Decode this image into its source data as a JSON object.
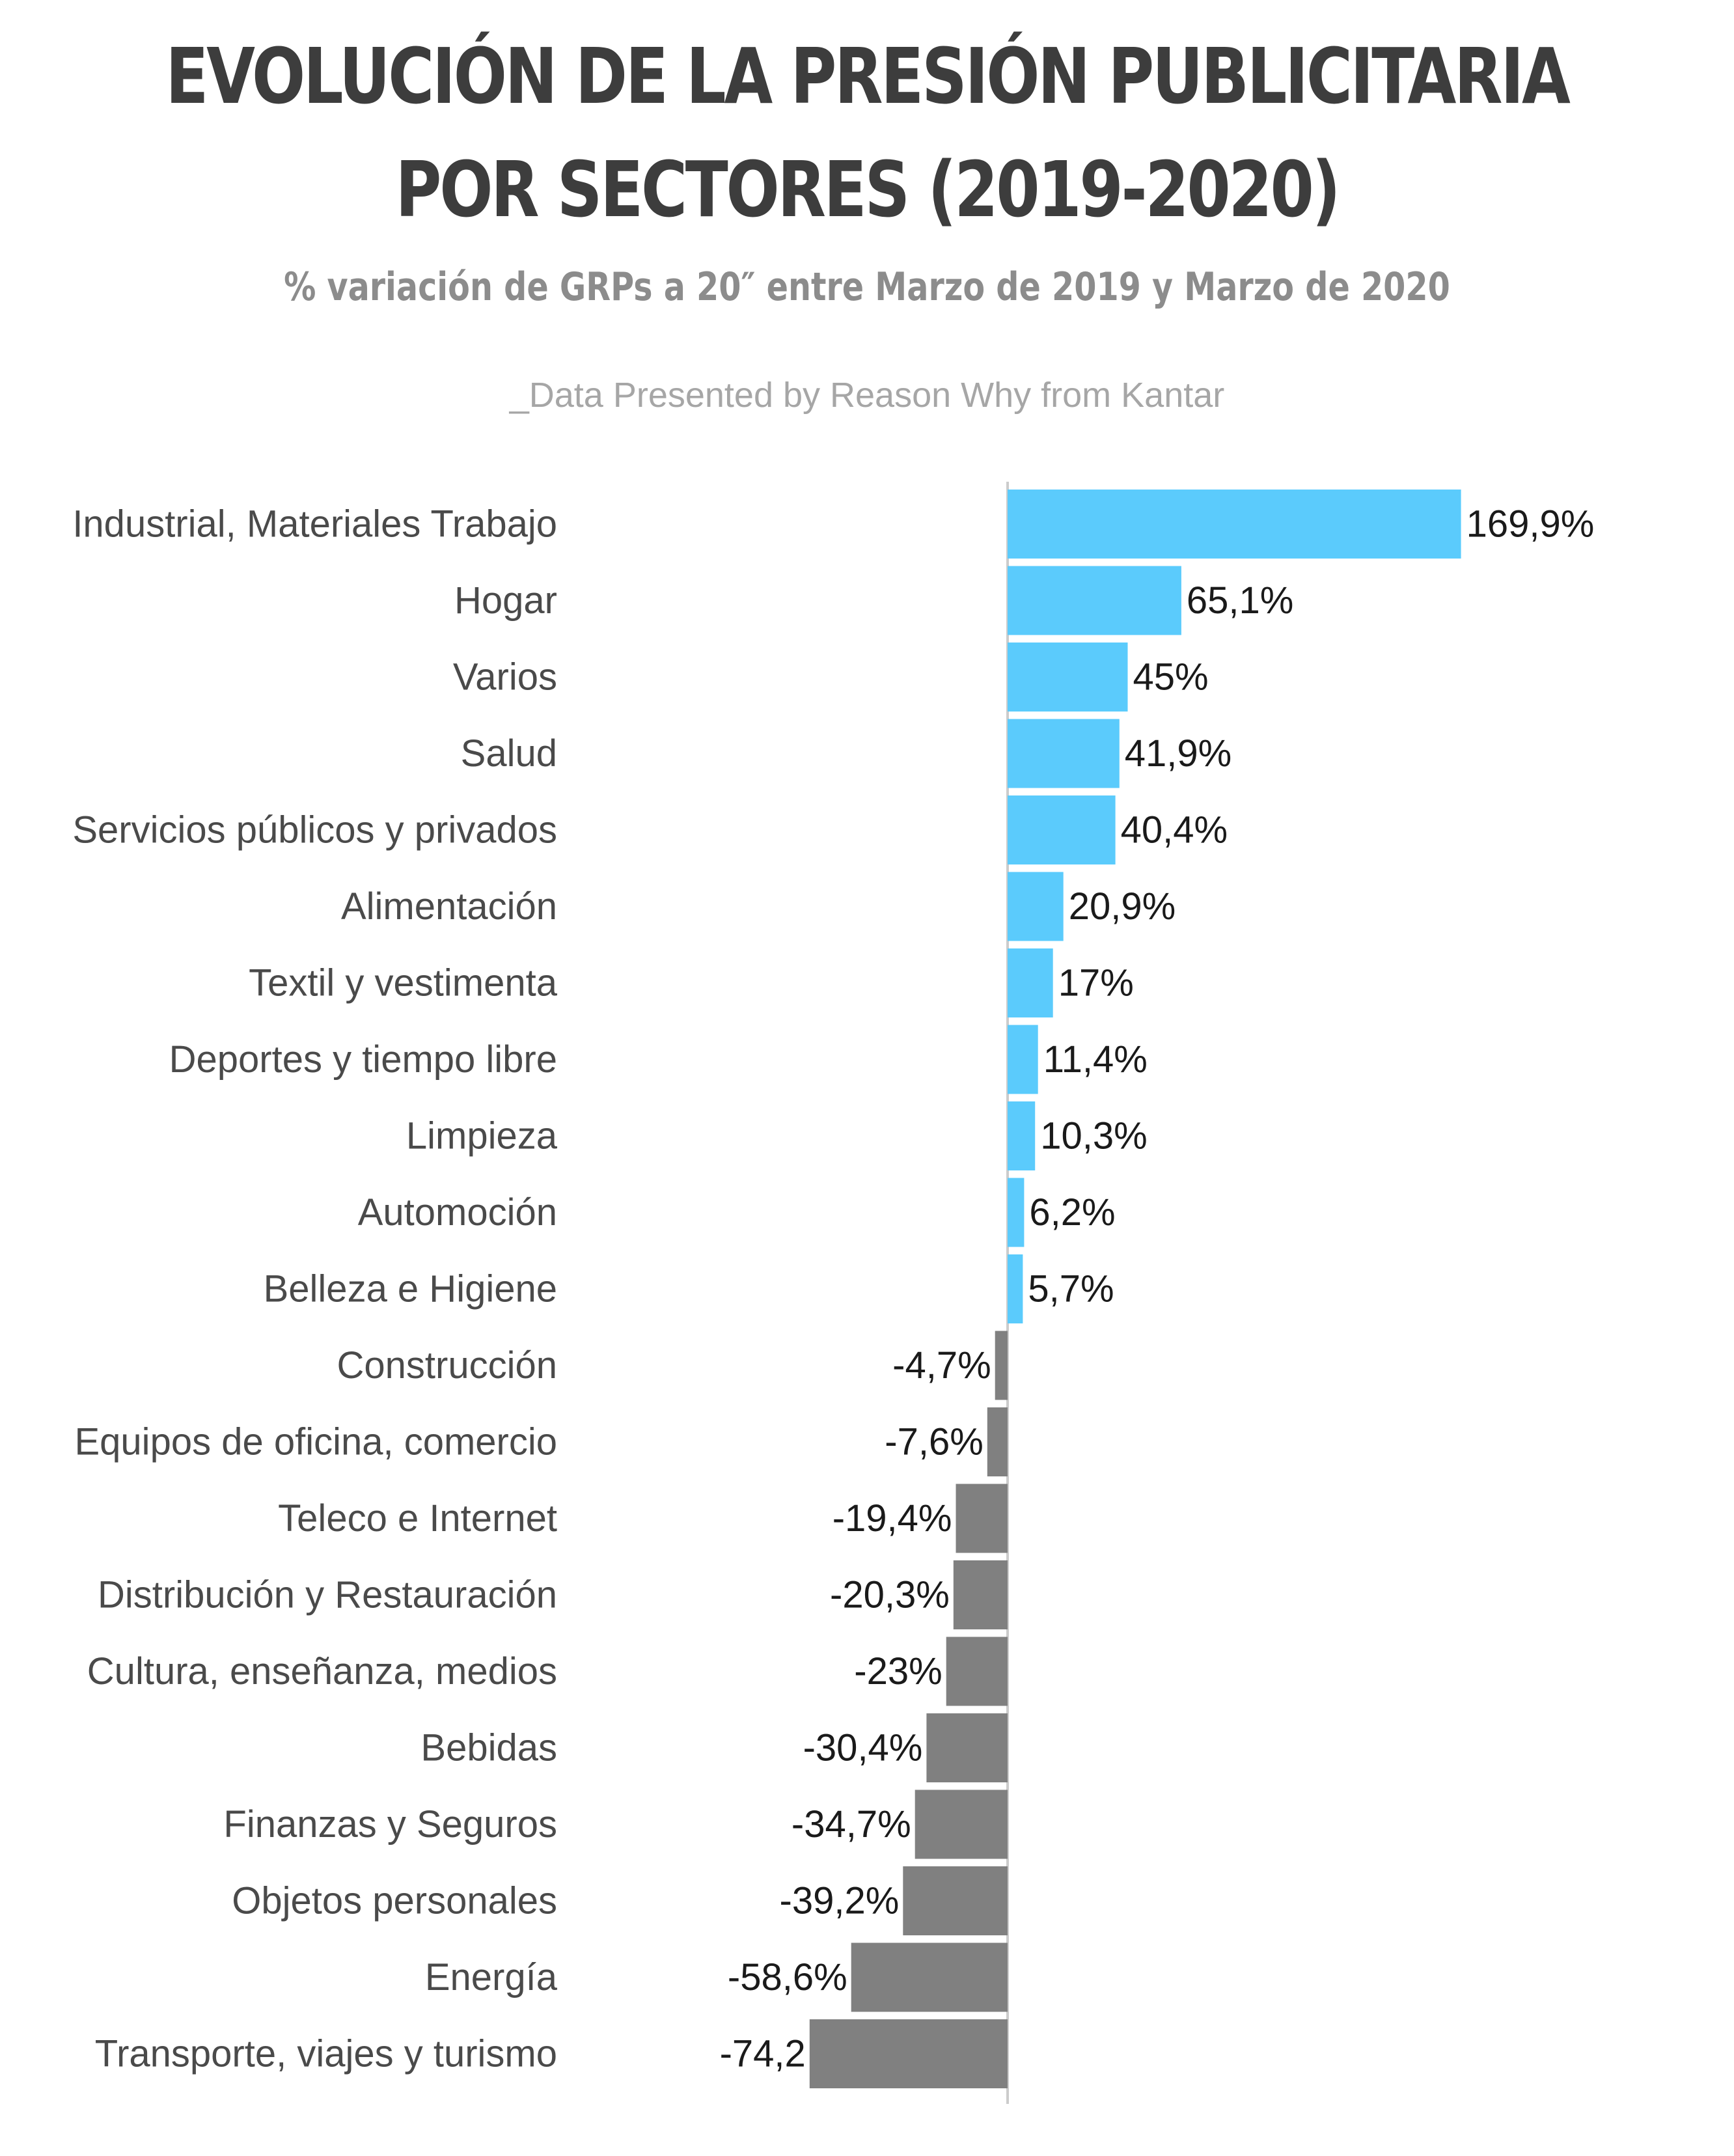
{
  "title_line1": "EVOLUCIÓN DE LA PRESIÓN PUBLICITARIA",
  "title_line2": "POR SECTORES (2019-2020)",
  "subtitle": "% variación de GRPs a 20″ entre Marzo de 2019 y Marzo de 2020",
  "source": "_Data Presented by Reason Why from Kantar",
  "colors": {
    "positive": "#5bcbfc",
    "negative": "#808080",
    "axis": "#cccccc"
  },
  "chart_data": {
    "type": "bar",
    "orientation": "horizontal",
    "categories": [
      "Industrial, Materiales Trabajo",
      "Hogar",
      "Varios",
      "Salud",
      "Servicios públicos y privados",
      "Alimentación",
      "Textil y vestimenta",
      "Deportes y tiempo libre",
      "Limpieza",
      "Automoción",
      "Belleza e Higiene",
      "Construcción",
      "Equipos de oficina, comercio",
      "Teleco e Internet",
      "Distribución y Restauración",
      "Cultura, enseñanza, medios",
      "Bebidas",
      "Finanzas y Seguros",
      "Objetos personales",
      "Energía",
      "Transporte, viajes y turismo"
    ],
    "values": [
      169.9,
      65.1,
      45,
      41.9,
      40.4,
      20.9,
      17,
      11.4,
      10.3,
      6.2,
      5.7,
      -4.7,
      -7.6,
      -19.4,
      -20.3,
      -23,
      -30.4,
      -34.7,
      -39.2,
      -58.6,
      -74.2
    ],
    "value_labels": [
      "169,9%",
      "65,1%",
      "45%",
      "41,9%",
      "40,4%",
      "20,9%",
      "17%",
      "11,4%",
      "10,3%",
      "6,2%",
      "5,7%",
      "-4,7%",
      "-7,6%",
      "-19,4%",
      "-20,3%",
      "-23%",
      "-30,4%",
      "-34,7%",
      "-39,2%",
      "-58,6%",
      "-74,2"
    ],
    "xlim": [
      -74.2,
      169.9
    ],
    "grid": false,
    "legend": "none"
  }
}
